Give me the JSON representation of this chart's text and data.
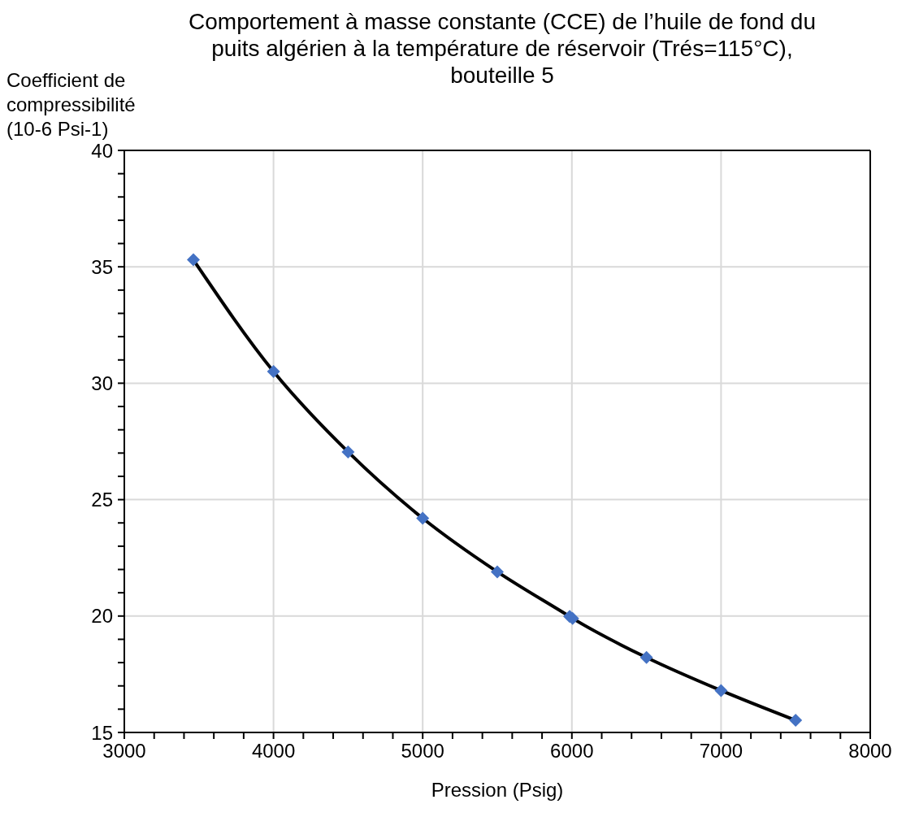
{
  "chart_data": {
    "type": "line",
    "title": "Comportement à masse constante (CCE) de l’huile de fond du puits algérien à la température de réservoir (Trés=115°C), bouteille 5",
    "xlabel": "Pression (Psig)",
    "ylabel": "Coefficient de compressibilité (10-6 Psi-1)",
    "x": [
      3463,
      4000,
      4500,
      5000,
      5500,
      5985,
      6005,
      6500,
      7000,
      7500
    ],
    "series": [
      {
        "color": "#000000",
        "marker": "none",
        "line_style": "solid",
        "values": [
          35.3,
          30.5,
          27.05,
          24.2,
          21.9,
          19.98,
          19.9,
          18.22,
          16.8,
          15.52
        ]
      },
      {
        "type": "scatter",
        "color": "#4472c4",
        "marker": "diamond",
        "values": [
          35.3,
          30.5,
          27.05,
          24.2,
          21.9,
          19.98,
          19.9,
          18.22,
          16.8,
          15.52
        ]
      }
    ],
    "xlim": [
      3000,
      8000
    ],
    "xticks": [
      3000,
      {
        "value": 3200,
        "label": null
      },
      {
        "value": 3400,
        "label": null
      },
      {
        "value": 3600,
        "label": null
      },
      {
        "value": 3800,
        "label": null
      },
      4000,
      {
        "value": 4200,
        "label": null
      },
      {
        "value": 4400,
        "label": null
      },
      {
        "value": 4600,
        "label": null
      },
      {
        "value": 4800,
        "label": null
      },
      5000,
      {
        "value": 5200,
        "label": null
      },
      {
        "value": 5400,
        "label": null
      },
      {
        "value": 5600,
        "label": null
      },
      {
        "value": 5800,
        "label": null
      },
      6000,
      {
        "value": 6200,
        "label": null
      },
      {
        "value": 6400,
        "label": null
      },
      {
        "value": 6600,
        "label": null
      },
      {
        "value": 6800,
        "label": null
      },
      7000,
      {
        "value": 7200,
        "label": null
      },
      {
        "value": 7400,
        "label": null
      },
      {
        "value": 7600,
        "label": null
      },
      {
        "value": 7800,
        "label": null
      },
      8000
    ],
    "ylim": [
      15,
      40
    ],
    "yticks": [
      15,
      {
        "value": 16,
        "label": null
      },
      {
        "value": 17,
        "label": null
      },
      {
        "value": 18,
        "label": null
      },
      {
        "value": 19,
        "label": null
      },
      20,
      {
        "value": 21,
        "label": null
      },
      {
        "value": 22,
        "label": null
      },
      {
        "value": 23,
        "label": null
      },
      {
        "value": 24,
        "label": null
      },
      25,
      {
        "value": 26,
        "label": null
      },
      {
        "value": 27,
        "label": null
      },
      {
        "value": 28,
        "label": null
      },
      {
        "value": 29,
        "label": null
      },
      30,
      {
        "value": 31,
        "label": null
      },
      {
        "value": 32,
        "label": null
      },
      {
        "value": 33,
        "label": null
      },
      {
        "value": 34,
        "label": null
      },
      35,
      {
        "value": 36,
        "label": null
      },
      {
        "value": 37,
        "label": null
      },
      {
        "value": 38,
        "label": null
      },
      {
        "value": 39,
        "label": null
      },
      40
    ],
    "grid": true
  }
}
